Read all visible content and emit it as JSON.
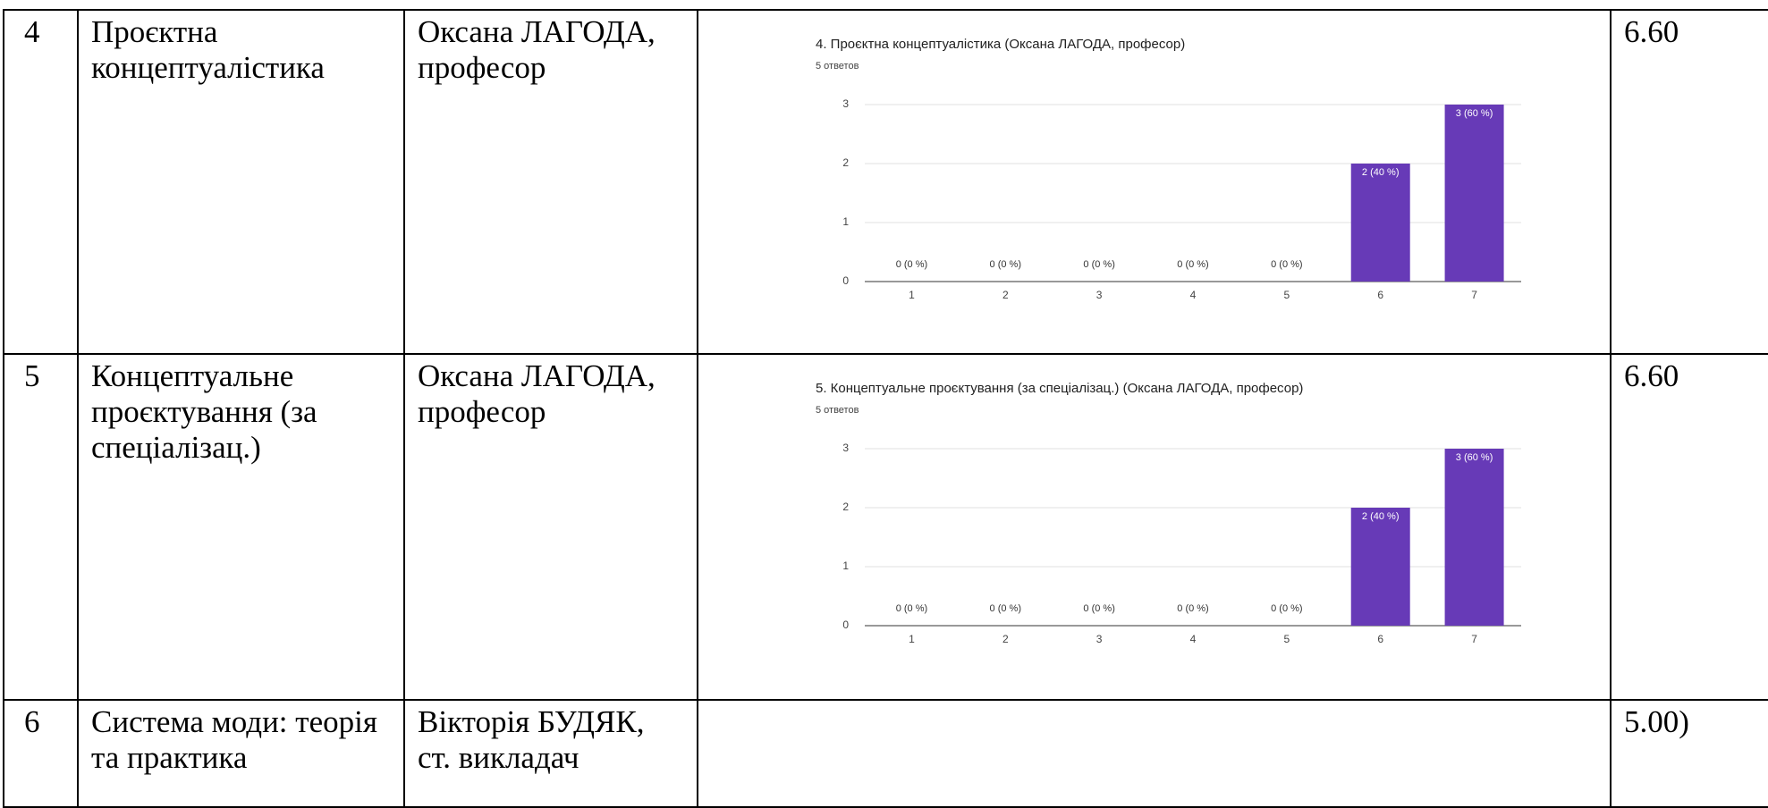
{
  "table": {
    "rows": [
      {
        "number": "4",
        "subject": "Проєктна концептуалістика",
        "teacher": "Оксана ЛАГОДА, професор",
        "score": "6.60"
      },
      {
        "number": "5",
        "subject": "Концептуальне проєктування (за спеціалізац.)",
        "teacher": "Оксана ЛАГОДА, професор",
        "score": "6.60"
      },
      {
        "number": "6",
        "subject": "Система моди: теорія та практика",
        "teacher": "Вікторія БУДЯК, ст. викладач",
        "score": "5.00)"
      }
    ]
  },
  "chart_data": [
    {
      "type": "bar",
      "title": "4. Проєктна концептуалістика (Оксана ЛАГОДА, професор)",
      "subtitle": "5 ответов",
      "categories": [
        "1",
        "2",
        "3",
        "4",
        "5",
        "6",
        "7"
      ],
      "values": [
        0,
        0,
        0,
        0,
        0,
        2,
        3
      ],
      "value_labels": [
        "0 (0 %)",
        "0 (0 %)",
        "0 (0 %)",
        "0 (0 %)",
        "0 (0 %)",
        "2 (40 %)",
        "3 (60 %)"
      ],
      "color": "#673ab7",
      "ylim": [
        0,
        3
      ],
      "yticks": [
        0,
        1,
        2,
        3
      ],
      "grid": true
    },
    {
      "type": "bar",
      "title": "5. Концептуальне проєктування (за спеціалізац.) (Оксана ЛАГОДА, професор)",
      "subtitle": "5 ответов",
      "categories": [
        "1",
        "2",
        "3",
        "4",
        "5",
        "6",
        "7"
      ],
      "values": [
        0,
        0,
        0,
        0,
        0,
        2,
        3
      ],
      "value_labels": [
        "0 (0 %)",
        "0 (0 %)",
        "0 (0 %)",
        "0 (0 %)",
        "0 (0 %)",
        "2 (40 %)",
        "3 (60 %)"
      ],
      "color": "#673ab7",
      "ylim": [
        0,
        3
      ],
      "yticks": [
        0,
        1,
        2,
        3
      ],
      "grid": true
    }
  ]
}
